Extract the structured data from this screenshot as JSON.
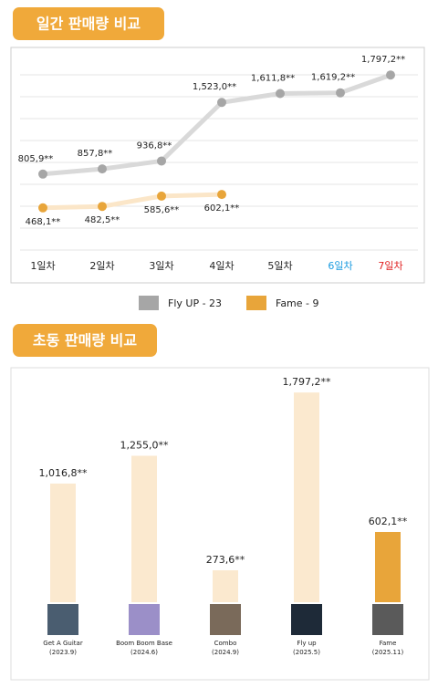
{
  "chart_data": [
    {
      "type": "line",
      "title": "일간 판매량 비교",
      "categories": [
        "1일차",
        "2일차",
        "3일차",
        "4일차",
        "5일차",
        "6일차",
        "7일차"
      ],
      "category_colors": [
        "#222222",
        "#222222",
        "#222222",
        "#222222",
        "#222222",
        "#1a9be0",
        "#e02020"
      ],
      "ylim": [
        -100000,
        2000000
      ],
      "legend": "bottom",
      "series": [
        {
          "name": "Fly UP - 23",
          "color": "#a6a6a6",
          "line_color": "#d9d9d9",
          "values": [
            805900,
            857800,
            936800,
            1523000,
            1611800,
            1619200,
            1797200
          ],
          "value_labels": [
            "805,9**",
            "857,8**",
            "936,8**",
            "1,523,0**",
            "1,611,8**",
            "1,619,2**",
            "1,797,2**"
          ]
        },
        {
          "name": "Fame - 9",
          "color": "#e8a53a",
          "line_color": "#fbe6c8",
          "values": [
            468100,
            482500,
            585600,
            602100,
            null,
            null,
            null
          ],
          "value_labels": [
            "468,1**",
            "482,5**",
            "585,6**",
            "602,1**",
            null,
            null,
            null
          ]
        }
      ]
    },
    {
      "type": "bar",
      "title": "초동 판매량 비교",
      "categories": [
        "Get A Guitar",
        "Boom Boom Base",
        "Combo",
        "Fly up",
        "Fame"
      ],
      "dates": [
        "(2023.9)",
        "(2024.6)",
        "(2024.9)",
        "(2025.5)",
        "(2025.11)"
      ],
      "values": [
        1016800,
        1255000,
        273600,
        1797200,
        602100
      ],
      "value_labels": [
        "1,016,8**",
        "1,255,0**",
        "273,6**",
        "1,797,2**",
        "602,1**"
      ],
      "colors": [
        "#fbe9cf",
        "#fbe9cf",
        "#fbe9cf",
        "#fbe9cf",
        "#e8a53a"
      ],
      "ylim": [
        0,
        1900000
      ]
    }
  ]
}
